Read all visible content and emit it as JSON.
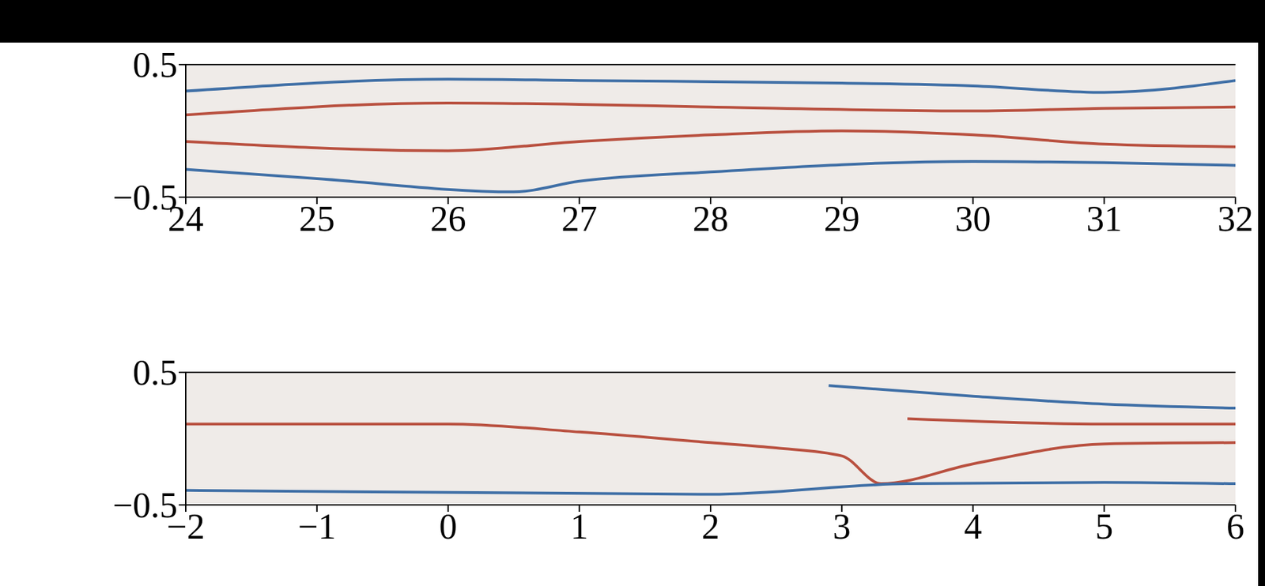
{
  "chart_data": [
    {
      "type": "line",
      "xlim": [
        24,
        32
      ],
      "xticks": [
        24,
        25,
        26,
        27,
        28,
        29,
        30,
        31,
        32
      ],
      "ylim": [
        -0.5,
        0.5
      ],
      "yticks": [
        {
          "value": -0.5,
          "label": "−0.5"
        },
        0.5
      ],
      "series": [
        {
          "color": "#3f6fa6",
          "x": [
            24,
            26,
            27,
            29,
            30,
            31,
            32
          ],
          "values": [
            0.3,
            0.39,
            0.38,
            0.36,
            0.34,
            0.29,
            0.38
          ]
        },
        {
          "color": "#b9503f",
          "x": [
            24,
            26,
            27,
            28,
            30,
            31,
            32
          ],
          "values": [
            0.12,
            0.21,
            0.2,
            0.18,
            0.15,
            0.17,
            0.18
          ]
        },
        {
          "color": "#b9503f",
          "x": [
            24,
            26,
            27,
            28,
            29,
            30,
            31,
            32
          ],
          "values": [
            -0.08,
            -0.15,
            -0.08,
            -0.03,
            0.0,
            -0.03,
            -0.1,
            -0.12
          ]
        },
        {
          "color": "#3f6fa6",
          "x": [
            24,
            25,
            26.5,
            27,
            28,
            30,
            31,
            32
          ],
          "values": [
            -0.29,
            -0.36,
            -0.46,
            -0.38,
            -0.31,
            -0.23,
            -0.24,
            -0.26
          ]
        }
      ]
    },
    {
      "type": "line",
      "xlim": [
        -2,
        6
      ],
      "xticks": [
        {
          "value": -2,
          "label": "−2"
        },
        {
          "value": -1,
          "label": "−1"
        },
        0,
        1,
        2,
        3,
        4,
        5,
        6
      ],
      "ylim": [
        -0.5,
        0.5
      ],
      "yticks": [
        {
          "value": -0.5,
          "label": "−0.5"
        },
        0.5
      ],
      "series": [
        {
          "color": "#b9503f",
          "x": [
            -2,
            0,
            1,
            2,
            2.5,
            3,
            3.3,
            4,
            5,
            6
          ],
          "values": [
            0.11,
            0.11,
            0.05,
            -0.03,
            -0.07,
            -0.13,
            -0.34,
            -0.19,
            -0.04,
            -0.03
          ]
        },
        {
          "color": "#3f6fa6",
          "x": [
            -2,
            2,
            3.5,
            5,
            6
          ],
          "values": [
            -0.39,
            -0.42,
            -0.34,
            -0.33,
            -0.34
          ]
        },
        {
          "color": "#3f6fa6",
          "x": [
            2.9,
            4,
            5,
            6
          ],
          "values": [
            0.4,
            0.32,
            0.26,
            0.23
          ]
        },
        {
          "color": "#b9503f",
          "x": [
            3.5,
            5,
            6
          ],
          "values": [
            0.15,
            0.11,
            0.11
          ]
        }
      ]
    }
  ]
}
